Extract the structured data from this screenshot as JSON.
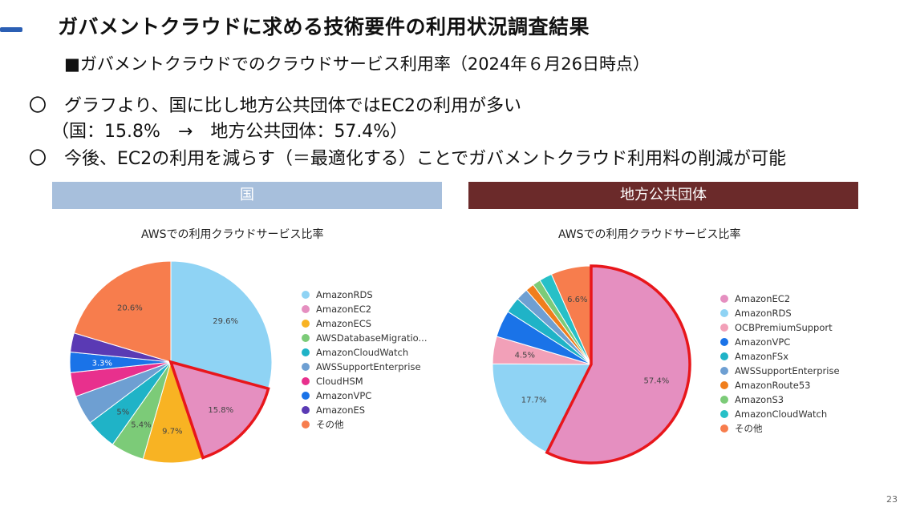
{
  "header": {
    "title": "ガバメントクラウドに求める技術要件の利用状況調査結果",
    "subtitle": "■ガバメントクラウドでのクラウドサービス利用率（2024年６月26日時点）"
  },
  "bullets": [
    {
      "marker": "〇",
      "text": "グラフより、国に比し地方公共団体ではEC2の利用が多い"
    },
    {
      "marker": "",
      "text": "（国：15.8%　→　地方公共団体：57.4%）"
    },
    {
      "marker": "〇",
      "text": "今後、EC2の利用を減らす（＝最適化する）ことでガバメントクラウド利用料の削減が可能"
    }
  ],
  "panels": {
    "left_label": "国",
    "right_label": "地方公共団体"
  },
  "page_number": "23",
  "chart_data": [
    {
      "type": "pie",
      "title": "AWSでの利用クラウドサービス比率",
      "legend_position": "right",
      "highlight": "AmazonEC2",
      "slices": [
        {
          "label": "AmazonRDS",
          "value": 29.6,
          "value_label": "29.6%",
          "color": "#8fd3f4"
        },
        {
          "label": "AmazonEC2",
          "value": 15.8,
          "value_label": "15.8%",
          "color": "#e58fc0"
        },
        {
          "label": "AmazonECS",
          "value": 9.7,
          "value_label": "9.7%",
          "color": "#f8b323"
        },
        {
          "label": "AWSDatabaseMigratio...",
          "value": 5.4,
          "value_label": "5.4%",
          "color": "#7ccb78"
        },
        {
          "label": "AmazonCloudWatch",
          "value": 5.0,
          "value_label": "5%",
          "color": "#1fb3c7"
        },
        {
          "label": "AWSSupportEnterprise",
          "value": 4.8,
          "value_label": "",
          "color": "#6e9fd2"
        },
        {
          "label": "CloudHSM",
          "value": 3.9,
          "value_label": "",
          "color": "#e8308d"
        },
        {
          "label": "AmazonVPC",
          "value": 3.3,
          "value_label": "3.3%",
          "color": "#1a73e8"
        },
        {
          "label": "AmazonES",
          "value": 3.1,
          "value_label": "",
          "color": "#5a3ab4"
        },
        {
          "label": "その他",
          "value": 20.6,
          "value_label": "20.6%",
          "color": "#f77d4d"
        }
      ]
    },
    {
      "type": "pie",
      "title": "AWSでの利用クラウドサービス比率",
      "legend_position": "right",
      "highlight": "AmazonEC2",
      "slices": [
        {
          "label": "AmazonEC2",
          "value": 57.4,
          "value_label": "57.4%",
          "color": "#e58fc0"
        },
        {
          "label": "AmazonRDS",
          "value": 17.7,
          "value_label": "17.7%",
          "color": "#8fd3f4"
        },
        {
          "label": "OCBPremiumSupport",
          "value": 4.5,
          "value_label": "4.5%",
          "color": "#f2a0b8"
        },
        {
          "label": "AmazonVPC",
          "value": 4.4,
          "value_label": "",
          "color": "#1a73e8"
        },
        {
          "label": "AmazonFSx",
          "value": 2.6,
          "value_label": "",
          "color": "#1fb3c7"
        },
        {
          "label": "AWSSupportEnterprise",
          "value": 2.0,
          "value_label": "",
          "color": "#6e9fd2"
        },
        {
          "label": "AmazonRoute53",
          "value": 1.4,
          "value_label": "",
          "color": "#f07e1c"
        },
        {
          "label": "AmazonS3",
          "value": 1.3,
          "value_label": "",
          "color": "#7ccb78"
        },
        {
          "label": "AmazonCloudWatch",
          "value": 2.1,
          "value_label": "",
          "color": "#27c0c7"
        },
        {
          "label": "その他",
          "value": 6.6,
          "value_label": "6.6%",
          "color": "#f77d4d"
        }
      ]
    }
  ]
}
